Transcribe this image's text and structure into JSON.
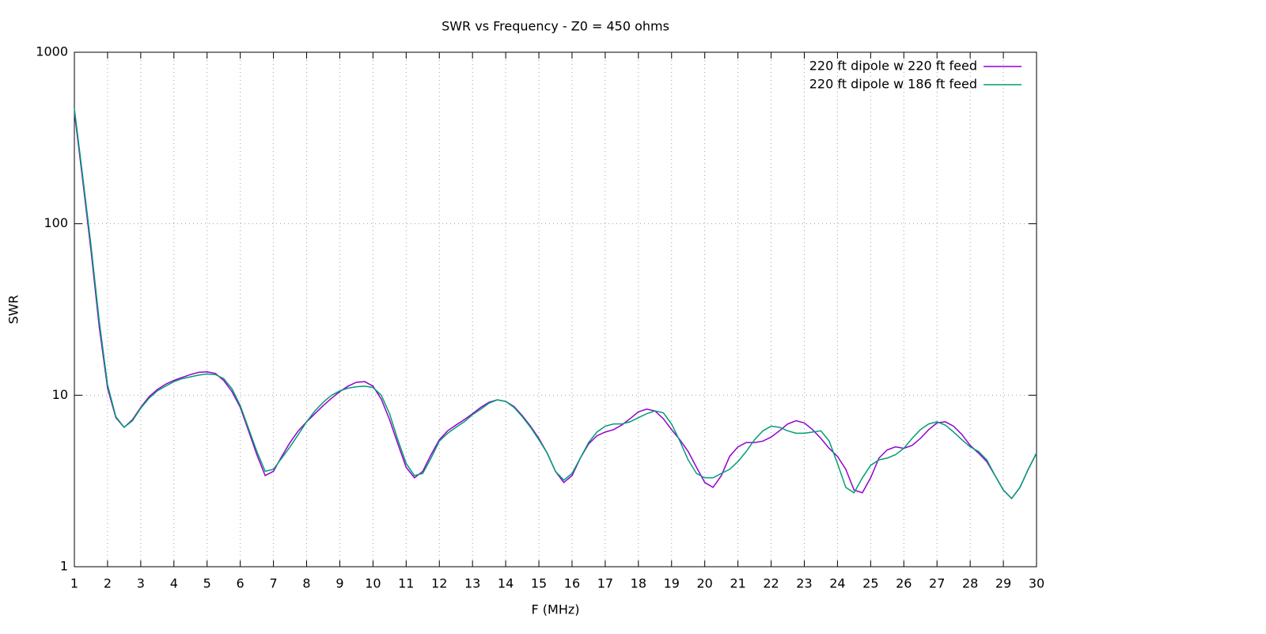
{
  "chart_data": {
    "type": "line",
    "title": "SWR vs Frequency - Z0 = 450 ohms",
    "x_label": "F (MHz)",
    "y_label": "SWR",
    "ylog": true,
    "grid": true,
    "legend": "top-right",
    "xlim": [
      1,
      30
    ],
    "ylim": [
      1,
      1000
    ],
    "xticks": [
      1,
      2,
      3,
      4,
      5,
      6,
      7,
      8,
      9,
      10,
      11,
      12,
      13,
      14,
      15,
      16,
      17,
      18,
      19,
      20,
      21,
      22,
      23,
      24,
      25,
      26,
      27,
      28,
      29,
      30
    ],
    "yticks": [
      1,
      10,
      100,
      1000
    ],
    "x": [
      1,
      1.25,
      1.5,
      1.75,
      2,
      2.25,
      2.5,
      2.75,
      3,
      3.25,
      3.5,
      3.75,
      4,
      4.25,
      4.5,
      4.75,
      5,
      5.25,
      5.5,
      5.75,
      6,
      6.25,
      6.5,
      6.75,
      7,
      7.25,
      7.5,
      7.75,
      8,
      8.25,
      8.5,
      8.75,
      9,
      9.25,
      9.5,
      9.75,
      10,
      10.25,
      10.5,
      10.75,
      11,
      11.25,
      11.5,
      11.75,
      12,
      12.25,
      12.5,
      12.75,
      13,
      13.25,
      13.5,
      13.75,
      14,
      14.25,
      14.5,
      14.75,
      15,
      15.25,
      15.5,
      15.75,
      16,
      16.25,
      16.5,
      16.75,
      17,
      17.25,
      17.5,
      17.75,
      18,
      18.25,
      18.5,
      18.75,
      19,
      19.25,
      19.5,
      19.75,
      20,
      20.25,
      20.5,
      20.75,
      21,
      21.25,
      21.5,
      21.75,
      22,
      22.25,
      22.5,
      22.75,
      23,
      23.25,
      23.5,
      23.75,
      24,
      24.25,
      24.5,
      24.75,
      25,
      25.25,
      25.5,
      25.75,
      26,
      26.25,
      26.5,
      26.75,
      27,
      27.25,
      27.5,
      27.75,
      28,
      28.25,
      28.5,
      28.75,
      29,
      29.25,
      29.5,
      29.75,
      30
    ],
    "series": [
      {
        "name": "220 ft dipole w 220 ft feed",
        "color": "#9400d3",
        "values": [
          450,
          180,
          70,
          25,
          11,
          7.4,
          6.5,
          7.2,
          8.5,
          9.8,
          10.8,
          11.6,
          12.2,
          12.7,
          13.2,
          13.6,
          13.7,
          13.4,
          12.2,
          10.5,
          8.5,
          6.2,
          4.5,
          3.4,
          3.6,
          4.4,
          5.3,
          6.2,
          7.0,
          7.8,
          8.7,
          9.6,
          10.5,
          11.3,
          11.9,
          12.0,
          11.3,
          9.5,
          7.2,
          5.2,
          3.8,
          3.3,
          3.6,
          4.5,
          5.5,
          6.2,
          6.7,
          7.2,
          7.8,
          8.5,
          9.1,
          9.4,
          9.2,
          8.6,
          7.6,
          6.6,
          5.6,
          4.6,
          3.6,
          3.1,
          3.4,
          4.3,
          5.2,
          5.8,
          6.1,
          6.3,
          6.7,
          7.3,
          8.0,
          8.3,
          8.1,
          7.3,
          6.3,
          5.5,
          4.7,
          3.8,
          3.1,
          2.9,
          3.4,
          4.4,
          5.0,
          5.3,
          5.3,
          5.4,
          5.7,
          6.2,
          6.8,
          7.1,
          6.9,
          6.3,
          5.6,
          4.9,
          4.4,
          3.7,
          2.8,
          2.7,
          3.3,
          4.3,
          4.8,
          5.0,
          4.9,
          5.1,
          5.6,
          6.3,
          6.9,
          7.0,
          6.6,
          5.9,
          5.1,
          4.6,
          4.1,
          3.4,
          2.8,
          2.5,
          2.9,
          3.7,
          4.6
        ]
      },
      {
        "name": "220 ft dipole w 186 ft feed",
        "color": "#009e73",
        "values": [
          470,
          190,
          75,
          27,
          11.5,
          7.5,
          6.5,
          7.1,
          8.4,
          9.6,
          10.6,
          11.3,
          12.0,
          12.5,
          12.8,
          13.1,
          13.3,
          13.2,
          12.5,
          10.9,
          8.7,
          6.4,
          4.7,
          3.6,
          3.7,
          4.3,
          5.0,
          5.9,
          7.0,
          8.1,
          9.1,
          10.0,
          10.6,
          11.0,
          11.2,
          11.3,
          11.1,
          10.0,
          7.8,
          5.5,
          4.0,
          3.4,
          3.5,
          4.3,
          5.4,
          6.0,
          6.5,
          7.0,
          7.7,
          8.3,
          9.0,
          9.4,
          9.2,
          8.5,
          7.5,
          6.5,
          5.5,
          4.6,
          3.6,
          3.2,
          3.5,
          4.3,
          5.3,
          6.1,
          6.6,
          6.8,
          6.8,
          7.0,
          7.4,
          7.8,
          8.1,
          7.9,
          6.8,
          5.4,
          4.2,
          3.5,
          3.3,
          3.3,
          3.5,
          3.7,
          4.1,
          4.7,
          5.5,
          6.2,
          6.6,
          6.5,
          6.2,
          6.0,
          6.0,
          6.1,
          6.2,
          5.4,
          4.0,
          2.9,
          2.7,
          3.3,
          3.9,
          4.2,
          4.3,
          4.5,
          4.9,
          5.6,
          6.3,
          6.8,
          7.0,
          6.7,
          6.1,
          5.5,
          5.0,
          4.7,
          4.2,
          3.4,
          2.8,
          2.5,
          2.9,
          3.7,
          4.6
        ]
      }
    ]
  }
}
